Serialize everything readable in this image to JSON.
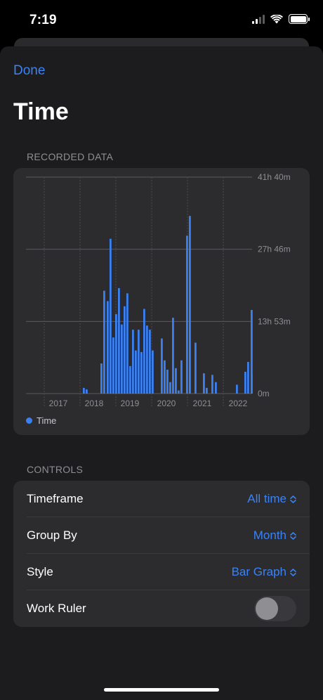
{
  "status": {
    "time": "7:19"
  },
  "nav": {
    "done_label": "Done"
  },
  "page": {
    "title": "Time"
  },
  "sections": {
    "recorded": "RECORDED DATA",
    "controls": "CONTROLS"
  },
  "chart_data": {
    "type": "bar",
    "series": [
      {
        "name": "Time",
        "values": [
          1.1,
          0.8,
          5.8,
          19.8,
          17.8,
          29.8,
          10.8,
          15.3,
          20.3,
          13.3,
          16.8,
          19.3,
          5.3,
          12.3,
          8.3,
          12.3,
          8.0,
          16.3,
          13.1,
          12.3,
          8.3,
          10.6,
          6.4,
          4.6,
          2.2,
          14.6,
          4.9,
          0.6,
          6.4,
          30.4,
          34.2,
          9.8,
          3.9,
          1.1,
          3.6,
          2.2,
          1.7,
          4.2,
          6.1,
          3.8,
          16.1
        ]
      }
    ],
    "x_ticks": [
      "2017",
      "2018",
      "2019",
      "2020",
      "2021",
      "2022"
    ],
    "y_ticks": [
      "0m",
      "13h 53m",
      "27h 46m",
      "41h 40m"
    ],
    "ylim": [
      0,
      41.67
    ],
    "grid": true,
    "legend": "bottom-left",
    "color": "#3a80f0"
  },
  "controls": [
    {
      "label": "Timeframe",
      "value": "All time"
    },
    {
      "label": "Group By",
      "value": "Month"
    },
    {
      "label": "Style",
      "value": "Bar Graph"
    },
    {
      "label": "Work Ruler",
      "toggle": false
    }
  ]
}
